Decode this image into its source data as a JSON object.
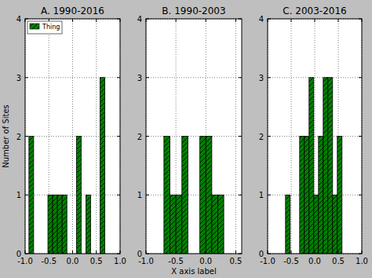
{
  "chart_data": [
    {
      "type": "histogram",
      "title": "A. 1990-2016",
      "y_label": "Number of Sites",
      "color": "#008000",
      "grid": true,
      "legend": "upper left",
      "bins": [
        -0.92,
        -0.82,
        -0.72,
        -0.62,
        -0.52,
        -0.42,
        -0.32,
        -0.22,
        -0.12,
        -0.02,
        0.08,
        0.18,
        0.28,
        0.38,
        0.48,
        0.58,
        0.68
      ],
      "series": [
        {
          "name": "Thing",
          "values": [
            2,
            0,
            0,
            0,
            1,
            1,
            1,
            1,
            0,
            0,
            2,
            0,
            1,
            0,
            0,
            3
          ]
        }
      ],
      "xlim": [
        -1,
        1
      ],
      "ylim": [
        0,
        4
      ],
      "xticks": [
        {
          "value": -1,
          "label": "-1.0"
        },
        {
          "value": -0.5,
          "label": "-0.5"
        },
        {
          "value": 0,
          "label": "0.0"
        },
        {
          "value": 0.5,
          "label": "0.5"
        },
        {
          "value": 1,
          "label": "1.0"
        }
      ],
      "yticks": [
        0,
        1,
        2,
        3,
        4
      ]
    },
    {
      "type": "histogram",
      "title": "B. 1990-2003",
      "x_label": "X axis label",
      "color": "#008000",
      "grid": true,
      "bins": [
        -0.7,
        -0.6,
        -0.5,
        -0.4,
        -0.3,
        -0.2,
        -0.1,
        0.0,
        0.1,
        0.2,
        0.3
      ],
      "series": [
        {
          "values": [
            2,
            1,
            1,
            2,
            0,
            0,
            2,
            2,
            1,
            1
          ]
        }
      ],
      "xlim": [
        -1,
        0.6
      ],
      "ylim": [
        0,
        4
      ],
      "xticks": [
        {
          "value": -1,
          "label": "-1.0"
        },
        {
          "value": -0.5,
          "label": "-0.5"
        },
        {
          "value": 0,
          "label": "0.0"
        },
        {
          "value": 0.5,
          "label": "0.5"
        }
      ],
      "yticks": [
        0,
        1,
        2,
        3,
        4
      ]
    },
    {
      "type": "histogram",
      "title": "C. 2003-2016",
      "color": "#008000",
      "grid": true,
      "bins": [
        -0.62,
        -0.52,
        -0.42,
        -0.32,
        -0.22,
        -0.12,
        -0.02,
        0.08,
        0.18,
        0.28,
        0.38,
        0.48,
        0.58
      ],
      "series": [
        {
          "values": [
            1,
            0,
            0,
            2,
            2,
            3,
            1,
            2,
            3,
            3,
            1,
            2
          ]
        }
      ],
      "xlim": [
        -1,
        1
      ],
      "ylim": [
        0,
        4
      ],
      "xticks": [
        {
          "value": -1,
          "label": "-1.0"
        },
        {
          "value": -0.5,
          "label": "-0.5"
        },
        {
          "value": 0,
          "label": "0.0"
        },
        {
          "value": 0.5,
          "label": "0.5"
        },
        {
          "value": 1,
          "label": "1.0"
        }
      ],
      "yticks": [
        0,
        1,
        2,
        3,
        4
      ]
    }
  ]
}
